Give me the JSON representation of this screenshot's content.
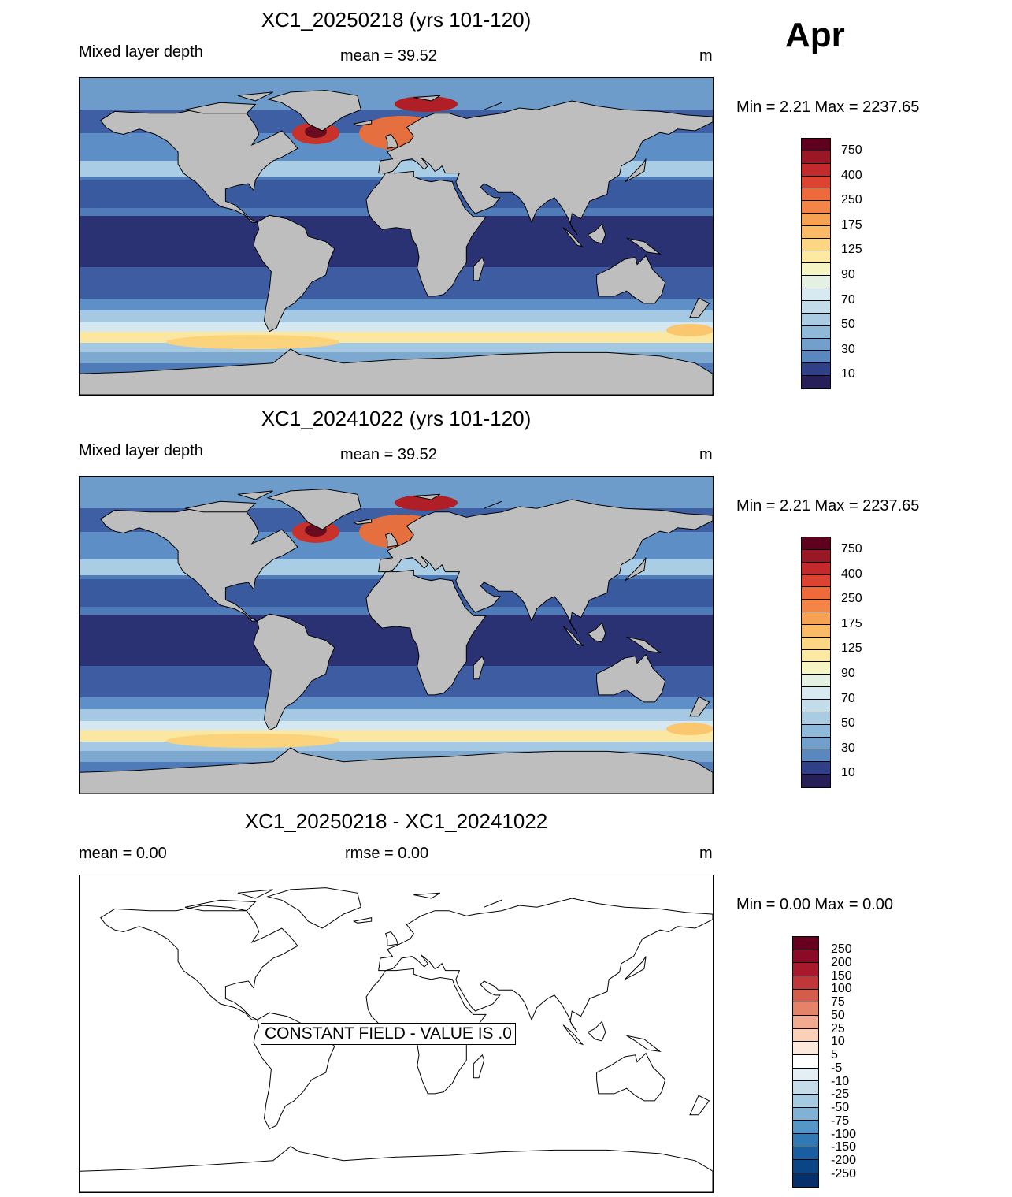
{
  "month_label": "Apr",
  "panels": [
    {
      "title": "XC1_20250218 (yrs 101-120)",
      "left_label": "Mixed layer depth",
      "center_label": "mean =  39.52",
      "units": "m",
      "minmax": "Min =   2.21 Max = 2237.65",
      "colorbar_labels": [
        "750",
        "400",
        "250",
        "175",
        "125",
        "90",
        "70",
        "50",
        "30",
        "10"
      ]
    },
    {
      "title": "XC1_20241022 (yrs 101-120)",
      "left_label": "Mixed layer depth",
      "center_label": "mean =  39.52",
      "units": "m",
      "minmax": "Min =   2.21 Max = 2237.65",
      "colorbar_labels": [
        "750",
        "400",
        "250",
        "175",
        "125",
        "90",
        "70",
        "50",
        "30",
        "10"
      ]
    },
    {
      "title": "XC1_20250218 - XC1_20241022",
      "left_label": "mean =   0.00",
      "center_label": "rmse =   0.00",
      "units": "m",
      "minmax": "Min =   0.00 Max =   0.00",
      "stamp": "CONSTANT FIELD - VALUE IS .0",
      "colorbar_labels": [
        "250",
        "200",
        "150",
        "100",
        "75",
        "50",
        "25",
        "10",
        "5",
        "-5",
        "-10",
        "-25",
        "-50",
        "-75",
        "-100",
        "-150",
        "-200",
        "-250"
      ]
    }
  ],
  "colors": {
    "land": "#bebebe",
    "mld_scale": [
      "#dde9f2",
      "#c6dbea",
      "#a6c8e0",
      "#87b2d4",
      "#6a9bc9",
      "#4f80bb",
      "#3a63a6",
      "#30478f",
      "#2b3274",
      "#231c4f"
    ],
    "mld_scale_top": [
      "#5e001e",
      "#a11a23",
      "#d8382a",
      "#ef6a3a",
      "#f7944b",
      "#fbbb68",
      "#fde08e",
      "#fbf5b5",
      "#eaf5da",
      "#dcedf3"
    ],
    "diff_scale": [
      "#67001f",
      "#8b0a25",
      "#a8192b",
      "#c13639",
      "#d35c4b",
      "#e48368",
      "#f2ab8e",
      "#fbd0b8",
      "#fde9dc",
      "#ffffff",
      "#e3eef5",
      "#c7dcea",
      "#a6cae1",
      "#7fb2d4",
      "#5497c6",
      "#2f79b5",
      "#185ea0",
      "#0a4685",
      "#05306b"
    ]
  }
}
